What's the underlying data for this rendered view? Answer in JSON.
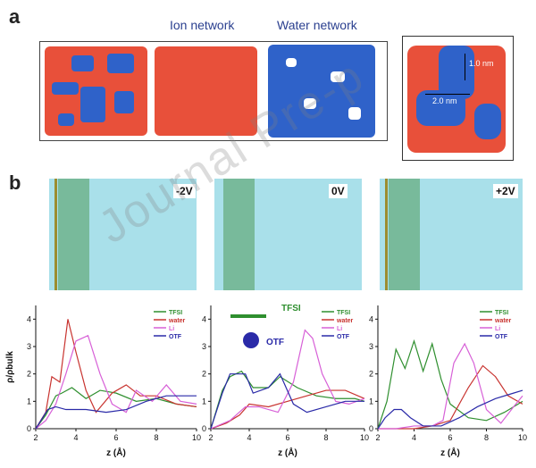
{
  "panel_a": {
    "letter": "a",
    "header_ion": "Ion network",
    "header_water": "Water network",
    "scale_1": "1.0 nm",
    "scale_2": "2.0 nm"
  },
  "panel_b": {
    "letter": "b",
    "voltages": [
      "-2V",
      "0V",
      "+2V"
    ],
    "molecule_labels": {
      "tfsi": "TFSI",
      "otf": "OTF"
    }
  },
  "watermark": "Journal Pre-p",
  "colors": {
    "ion_red": "#e8503a",
    "water_blue": "#2f62c9",
    "tfsi": "#2f8f2f",
    "water": "#c8332f",
    "li": "#d760d7",
    "otf": "#2a2aa8",
    "snapshot_bg": "#a9e0ea"
  },
  "chart_data": [
    {
      "type": "line",
      "ylabel": "ρ/ρbulk",
      "xlabel": "z (Å)",
      "xlim": [
        2,
        10
      ],
      "ylim": [
        0,
        4.5
      ],
      "xticks": [
        2,
        4,
        6,
        8,
        10
      ],
      "yticks": [
        0,
        1,
        2,
        3,
        4
      ],
      "legend": [
        "TFSI",
        "water",
        "Li",
        "OTF"
      ],
      "series": [
        {
          "name": "TFSI",
          "x": [
            2.0,
            2.5,
            3.0,
            3.3,
            3.8,
            4.5,
            5.2,
            6.0,
            7.0,
            8.0,
            9.0,
            10.0
          ],
          "values": [
            0,
            0.5,
            1.2,
            1.3,
            1.5,
            1.1,
            1.4,
            1.3,
            1.0,
            1.1,
            0.9,
            0.8
          ]
        },
        {
          "name": "water",
          "x": [
            2.0,
            2.5,
            2.8,
            3.2,
            3.6,
            4.0,
            4.5,
            5.0,
            5.8,
            6.5,
            7.2,
            8.0,
            9.0,
            10.0
          ],
          "values": [
            0,
            0.6,
            1.9,
            1.7,
            4.0,
            2.8,
            1.4,
            0.6,
            1.3,
            1.6,
            1.2,
            1.2,
            0.9,
            0.8
          ]
        },
        {
          "name": "Li",
          "x": [
            2.0,
            2.5,
            3.0,
            3.5,
            4.0,
            4.6,
            5.2,
            5.8,
            6.5,
            7.0,
            7.8,
            8.5,
            9.2,
            10.0
          ],
          "values": [
            0,
            0.3,
            0.9,
            2.0,
            3.2,
            3.4,
            2.0,
            0.9,
            0.6,
            1.4,
            1.0,
            1.6,
            1.0,
            0.9
          ]
        },
        {
          "name": "OTF",
          "x": [
            2.0,
            2.6,
            3.0,
            3.5,
            4.5,
            5.5,
            6.5,
            7.5,
            8.5,
            9.5,
            10.0
          ],
          "values": [
            0,
            0.7,
            0.8,
            0.7,
            0.7,
            0.6,
            0.7,
            1.0,
            1.2,
            1.2,
            1.2
          ]
        }
      ]
    },
    {
      "type": "line",
      "ylabel": "",
      "xlabel": "z (Å)",
      "xlim": [
        2,
        10
      ],
      "ylim": [
        0,
        4.5
      ],
      "xticks": [
        2,
        4,
        6,
        8,
        10
      ],
      "yticks": [
        0,
        1,
        2,
        3,
        4
      ],
      "legend": [
        "TFSI",
        "water",
        "Li",
        "OTF"
      ],
      "series": [
        {
          "name": "TFSI",
          "x": [
            2.0,
            2.6,
            3.0,
            3.6,
            4.2,
            5.0,
            5.6,
            6.5,
            7.5,
            8.5,
            9.5,
            10.0
          ],
          "values": [
            0,
            1.4,
            1.9,
            2.1,
            1.5,
            1.5,
            1.9,
            1.5,
            1.2,
            1.1,
            1.1,
            1.0
          ]
        },
        {
          "name": "water",
          "x": [
            2.0,
            2.8,
            3.5,
            4.0,
            5.0,
            6.0,
            7.0,
            8.0,
            9.0,
            10.0
          ],
          "values": [
            0,
            0.2,
            0.5,
            0.9,
            0.8,
            1.0,
            1.2,
            1.4,
            1.4,
            1.1
          ]
        },
        {
          "name": "Li",
          "x": [
            2.0,
            3.0,
            3.8,
            4.5,
            5.5,
            6.3,
            6.9,
            7.3,
            7.8,
            8.5,
            9.2,
            10.0
          ],
          "values": [
            0,
            0.3,
            0.8,
            0.8,
            0.6,
            1.7,
            3.6,
            3.3,
            2.0,
            1.0,
            0.9,
            1.1
          ]
        },
        {
          "name": "OTF",
          "x": [
            2.0,
            2.6,
            3.0,
            3.8,
            4.2,
            5.0,
            5.6,
            6.3,
            7.0,
            8.0,
            9.0,
            10.0
          ],
          "values": [
            0,
            1.3,
            2.0,
            2.0,
            1.3,
            1.5,
            2.0,
            0.9,
            0.6,
            0.8,
            1.0,
            1.0
          ]
        }
      ]
    },
    {
      "type": "line",
      "ylabel": "",
      "xlabel": "z (Å)",
      "xlim": [
        2,
        10
      ],
      "ylim": [
        0,
        4.5
      ],
      "xticks": [
        2,
        4,
        6,
        8,
        10
      ],
      "yticks": [
        0,
        1,
        2,
        3,
        4
      ],
      "legend": [
        "TFSI",
        "water",
        "Li",
        "OTF"
      ],
      "series": [
        {
          "name": "TFSI",
          "x": [
            2.0,
            2.5,
            3.0,
            3.5,
            4.0,
            4.5,
            5.0,
            5.5,
            6.0,
            7.0,
            8.0,
            9.0,
            10.0
          ],
          "values": [
            0,
            1.0,
            2.9,
            2.2,
            3.2,
            2.1,
            3.1,
            1.8,
            0.9,
            0.4,
            0.3,
            0.6,
            1.0
          ]
        },
        {
          "name": "water",
          "x": [
            2.0,
            3.0,
            4.0,
            5.0,
            6.0,
            7.0,
            7.8,
            8.5,
            9.2,
            10.0
          ],
          "values": [
            0,
            0,
            0,
            0.1,
            0.3,
            1.5,
            2.3,
            1.9,
            1.2,
            0.9
          ]
        },
        {
          "name": "Li",
          "x": [
            2.0,
            3.0,
            4.0,
            5.0,
            5.6,
            6.2,
            6.8,
            7.3,
            8.0,
            8.8,
            9.5,
            10.0
          ],
          "values": [
            0,
            0,
            0.1,
            0.1,
            0.3,
            2.4,
            3.1,
            2.4,
            0.7,
            0.2,
            0.8,
            1.2
          ]
        },
        {
          "name": "OTF",
          "x": [
            2.0,
            2.4,
            2.9,
            3.3,
            3.8,
            4.5,
            5.5,
            6.5,
            7.5,
            8.5,
            9.5,
            10.0
          ],
          "values": [
            0,
            0.4,
            0.7,
            0.7,
            0.4,
            0.1,
            0.1,
            0.4,
            0.8,
            1.1,
            1.3,
            1.4
          ]
        }
      ]
    }
  ]
}
